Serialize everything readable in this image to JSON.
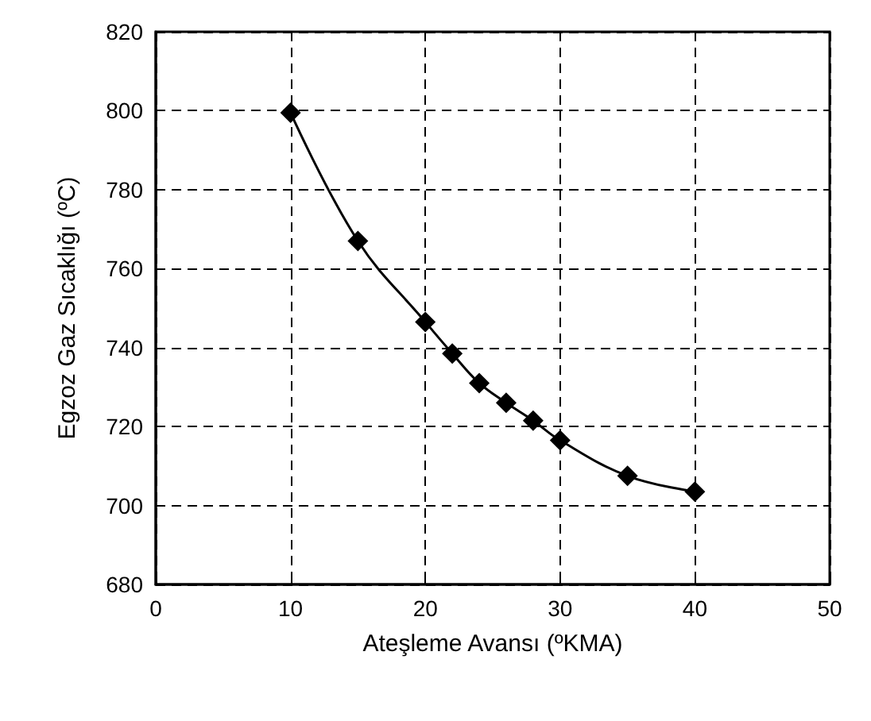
{
  "chart_data": {
    "type": "line",
    "xlabel": "Ateşleme Avansı (ºKMA)",
    "ylabel": "Egzoz Gaz Sıcaklığı (ºC)",
    "x": [
      10,
      15,
      20,
      22,
      24,
      26,
      28,
      30,
      35,
      40
    ],
    "series": [
      {
        "color": "#000000",
        "values": [
          799.5,
          767,
          746.5,
          738.5,
          731,
          726,
          721.5,
          716.5,
          707.5,
          703.5
        ]
      }
    ],
    "xlim": [
      0,
      50
    ],
    "xticks": [
      0,
      10,
      20,
      30,
      40,
      50
    ],
    "ylim": [
      680,
      820
    ],
    "yticks": [
      680,
      700,
      720,
      740,
      760,
      780,
      800,
      820
    ],
    "grid": true,
    "marker": "diamond",
    "line_style": "solid"
  }
}
